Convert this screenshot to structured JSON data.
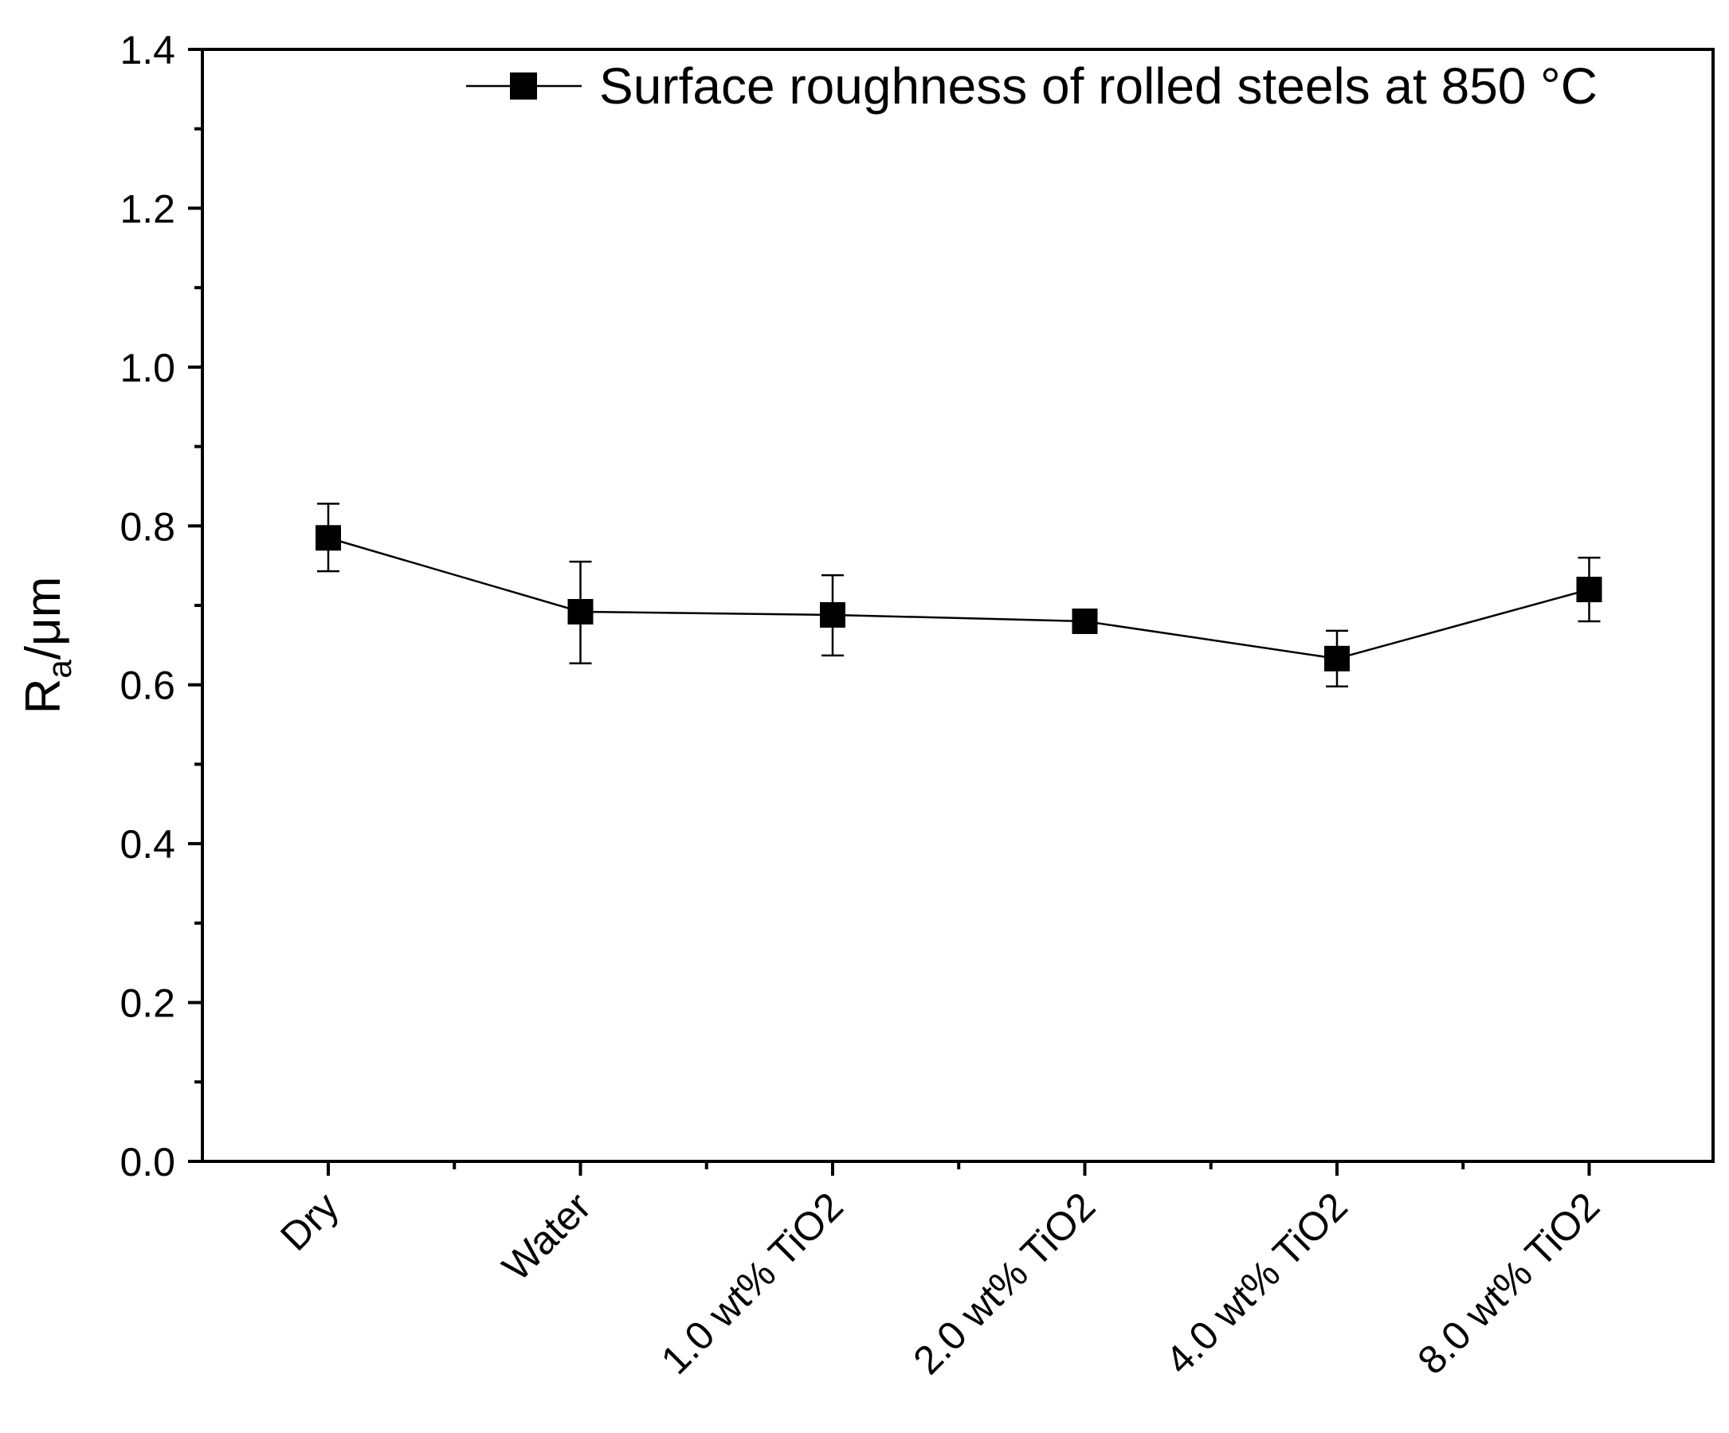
{
  "chart_data": {
    "type": "line",
    "title": "",
    "xlabel": "",
    "ylabel": {
      "main": "R",
      "subscript": "a",
      "unit": "/μm"
    },
    "ylim": [
      0,
      1.4
    ],
    "yticks": [
      0.0,
      0.2,
      0.4,
      0.6,
      0.8,
      1.0,
      1.2,
      1.4
    ],
    "ytick_labels": [
      "0.0",
      "0.2",
      "0.4",
      "0.6",
      "0.8",
      "1.0",
      "1.2",
      "1.4"
    ],
    "categories": [
      "Dry",
      "Water",
      "1.0 wt% TiO2",
      "2.0 wt% TiO2",
      "4.0 wt% TiO2",
      "8.0 wt% TiO2"
    ],
    "series": [
      {
        "name": "Surface roughness of rolled steels at 850 °C",
        "values": [
          0.785,
          0.692,
          0.688,
          0.68,
          0.633,
          0.72
        ],
        "error_low": [
          0.743,
          0.627,
          0.637,
          0.68,
          0.598,
          0.68
        ],
        "error_high": [
          0.828,
          0.755,
          0.738,
          0.68,
          0.668,
          0.76
        ],
        "color": "#000000",
        "marker": "square"
      }
    ],
    "legend": {
      "position": "top-right",
      "label": "Surface roughness of rolled steels at 850 °C"
    },
    "grid": false
  }
}
